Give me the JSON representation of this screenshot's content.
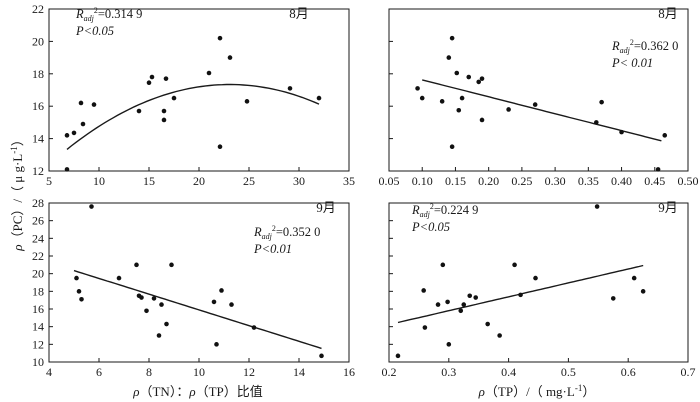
{
  "shared_axis": {
    "ylabel": "ρ（PC）/（μg·L⁻¹）",
    "ylabel_parts": [
      "ρ",
      "（PC）/（ μ g·L",
      "-1",
      "）"
    ],
    "xlabel_left": "ρ（TN）：ρ（TP）比值",
    "xlabel_left_parts": [
      "ρ",
      "（TN）：",
      "ρ",
      "（TP）比值"
    ],
    "xlabel_right": "ρ（TP）/（mg·L⁻¹）",
    "xlabel_right_parts": [
      "ρ",
      "（TP）/（ mg·L",
      "-1",
      "）"
    ]
  },
  "colors": {
    "ink": "#1a1a1a",
    "points": "#111111",
    "background": "#ffffff"
  },
  "chart_data": [
    {
      "id": "aug_tn_tp",
      "type": "scatter",
      "month": "8月",
      "xlim": [
        5,
        35
      ],
      "ylim": [
        12,
        22
      ],
      "xticks": [
        5,
        10,
        15,
        20,
        25,
        30,
        35
      ],
      "xtick_labels": [
        "5",
        "10",
        "15",
        "20",
        "25",
        "30",
        "35"
      ],
      "yticks": [
        12,
        14,
        16,
        18,
        20,
        22
      ],
      "ytick_labels": [
        "12",
        "14",
        "16",
        "18",
        "20",
        "22"
      ],
      "stats": {
        "r_symbol": "R",
        "r_sub": "adj",
        "r_sup": "2",
        "r_value": "=0.314 9",
        "p_text": "P<0.05"
      },
      "fit": {
        "kind": "quadratic",
        "coef": [
          9.29,
          0.6979,
          -0.01513
        ],
        "x_range": [
          6.8,
          32
        ]
      },
      "points": [
        [
          6.8,
          14.2
        ],
        [
          6.8,
          12.1
        ],
        [
          7.5,
          14.35
        ],
        [
          8.2,
          16.2
        ],
        [
          8.4,
          14.9
        ],
        [
          9.5,
          16.1
        ],
        [
          14.0,
          15.7
        ],
        [
          15.0,
          17.45
        ],
        [
          15.3,
          17.8
        ],
        [
          16.5,
          15.7
        ],
        [
          16.5,
          15.15
        ],
        [
          16.7,
          17.7
        ],
        [
          17.5,
          16.5
        ],
        [
          21.0,
          18.05
        ],
        [
          22.1,
          20.2
        ],
        [
          22.1,
          13.5
        ],
        [
          23.1,
          19.0
        ],
        [
          24.8,
          16.3
        ],
        [
          29.1,
          17.1
        ],
        [
          32.0,
          16.5
        ]
      ]
    },
    {
      "id": "aug_tp",
      "type": "scatter",
      "month": "8月",
      "xlim": [
        0.05,
        0.5
      ],
      "ylim": [
        12,
        22
      ],
      "xticks": [
        0.05,
        0.1,
        0.15,
        0.2,
        0.25,
        0.3,
        0.35,
        0.4,
        0.45,
        0.5
      ],
      "xtick_labels": [
        "0.05",
        "0.10",
        "0.15",
        "0.20",
        "0.25",
        "0.30",
        "0.35",
        "0.40",
        "0.45",
        "0.50"
      ],
      "yticks": [
        12,
        14,
        16,
        18,
        20,
        22
      ],
      "ytick_labels": [
        "",
        "",
        "",
        "",
        "",
        ""
      ],
      "stats": {
        "r_symbol": "R",
        "r_sub": "adj",
        "r_sup": "2",
        "r_value": "=0.362 0",
        "p_text": "P< 0.01"
      },
      "fit": {
        "kind": "linear",
        "coef": [
          18.67,
          -10.45
        ],
        "x_range": [
          0.1,
          0.46
        ]
      },
      "points": [
        [
          0.093,
          17.1
        ],
        [
          0.1,
          16.5
        ],
        [
          0.13,
          16.3
        ],
        [
          0.14,
          19.0
        ],
        [
          0.145,
          20.2
        ],
        [
          0.145,
          13.5
        ],
        [
          0.152,
          18.05
        ],
        [
          0.155,
          15.75
        ],
        [
          0.16,
          16.5
        ],
        [
          0.17,
          17.8
        ],
        [
          0.185,
          17.5
        ],
        [
          0.19,
          17.7
        ],
        [
          0.19,
          15.15
        ],
        [
          0.23,
          15.8
        ],
        [
          0.27,
          16.1
        ],
        [
          0.362,
          15.0
        ],
        [
          0.37,
          16.25
        ],
        [
          0.4,
          14.4
        ],
        [
          0.455,
          12.1
        ],
        [
          0.465,
          14.2
        ]
      ]
    },
    {
      "id": "sep_tn_tp",
      "type": "scatter",
      "month": "9月",
      "xlim": [
        4,
        16
      ],
      "ylim": [
        10,
        28
      ],
      "xticks": [
        4,
        6,
        8,
        10,
        12,
        14,
        16
      ],
      "xtick_labels": [
        "4",
        "6",
        "8",
        "10",
        "12",
        "14",
        "16"
      ],
      "yticks": [
        10,
        12,
        14,
        16,
        18,
        20,
        22,
        24,
        26,
        28
      ],
      "ytick_labels": [
        "10",
        "12",
        "14",
        "16",
        "18",
        "20",
        "22",
        "24",
        "26",
        "28"
      ],
      "stats": {
        "r_symbol": "R",
        "r_sub": "adj",
        "r_sup": "2",
        "r_value": "=0.352 0",
        "p_text": "P<0.01"
      },
      "fit": {
        "kind": "linear",
        "coef": [
          24.8,
          -0.89
        ],
        "x_range": [
          5.0,
          14.9
        ]
      },
      "points": [
        [
          5.1,
          19.5
        ],
        [
          5.2,
          18.0
        ],
        [
          5.3,
          17.1
        ],
        [
          5.7,
          27.6
        ],
        [
          6.8,
          19.5
        ],
        [
          7.5,
          21.0
        ],
        [
          7.6,
          17.5
        ],
        [
          7.7,
          17.3
        ],
        [
          7.9,
          15.8
        ],
        [
          8.2,
          17.2
        ],
        [
          8.4,
          13.0
        ],
        [
          8.5,
          16.5
        ],
        [
          8.7,
          14.3
        ],
        [
          8.9,
          21.0
        ],
        [
          10.6,
          16.8
        ],
        [
          10.7,
          12.0
        ],
        [
          10.9,
          18.1
        ],
        [
          11.3,
          16.5
        ],
        [
          12.2,
          13.9
        ],
        [
          14.9,
          10.7
        ]
      ]
    },
    {
      "id": "sep_tp",
      "type": "scatter",
      "month": "9月",
      "xlim": [
        0.2,
        0.7
      ],
      "ylim": [
        10,
        28
      ],
      "xticks": [
        0.2,
        0.3,
        0.4,
        0.5,
        0.6,
        0.7
      ],
      "xtick_labels": [
        "0.2",
        "0.3",
        "0.4",
        "0.5",
        "0.6",
        "0.7"
      ],
      "yticks": [
        10,
        12,
        14,
        16,
        18,
        20,
        22,
        24,
        26,
        28
      ],
      "ytick_labels": [
        "",
        "",
        "",
        "",
        "",
        "",
        "",
        "",
        "",
        ""
      ],
      "stats": {
        "r_symbol": "R",
        "r_sub": "adj",
        "r_sup": "2",
        "r_value": "=0.224 9",
        "p_text": "P<0.05"
      },
      "fit": {
        "kind": "linear",
        "coef": [
          11.09,
          15.73
        ],
        "x_range": [
          0.215,
          0.625
        ]
      },
      "points": [
        [
          0.215,
          10.7
        ],
        [
          0.258,
          18.1
        ],
        [
          0.26,
          13.9
        ],
        [
          0.282,
          16.5
        ],
        [
          0.29,
          21.0
        ],
        [
          0.298,
          16.8
        ],
        [
          0.3,
          12.0
        ],
        [
          0.32,
          15.8
        ],
        [
          0.325,
          16.5
        ],
        [
          0.335,
          17.5
        ],
        [
          0.345,
          17.3
        ],
        [
          0.365,
          14.3
        ],
        [
          0.385,
          13.0
        ],
        [
          0.41,
          21.0
        ],
        [
          0.42,
          17.6
        ],
        [
          0.445,
          19.5
        ],
        [
          0.548,
          27.6
        ],
        [
          0.575,
          17.2
        ],
        [
          0.61,
          19.5
        ],
        [
          0.625,
          18.0
        ]
      ]
    }
  ]
}
